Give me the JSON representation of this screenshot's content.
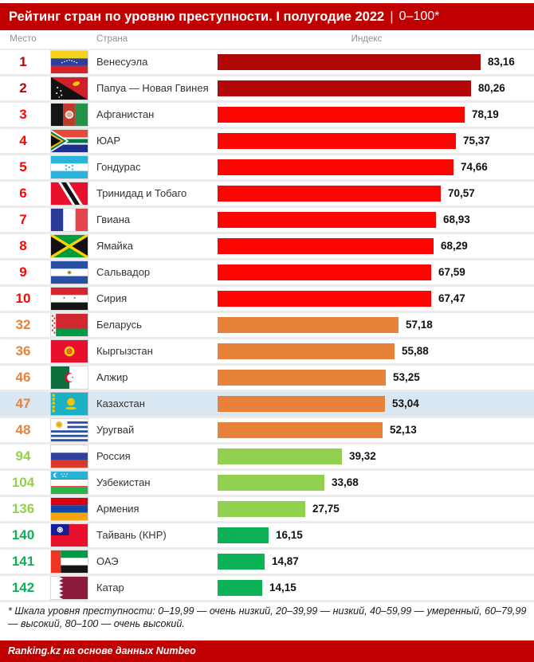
{
  "title": {
    "main": "Рейтинг стран по уровню преступности. I полугодие 2022",
    "separator": "|",
    "scale": "0–100*"
  },
  "columns": {
    "rank": "Место",
    "country": "Страна",
    "index": "Индекс"
  },
  "chart_data": {
    "type": "bar",
    "orientation": "horizontal",
    "xlim": [
      0,
      100
    ],
    "title": "Рейтинг стран по уровню преступности. I полугодие 2022 | 0–100*",
    "value_column": "Индекс",
    "tier_colors": {
      "very_high": "#b20707",
      "high": "#fb0603",
      "moderate": "#e8823a",
      "low": "#92d050",
      "very_low": "#0db156"
    },
    "rows": [
      {
        "rank": "1",
        "country": "Венесуэла",
        "value": 83.16,
        "label": "83,16",
        "tier": "very_high",
        "flag": "ve",
        "highlight": false
      },
      {
        "rank": "2",
        "country": "Папуа — Новая Гвинея",
        "value": 80.26,
        "label": "80,26",
        "tier": "very_high",
        "flag": "pg",
        "highlight": false
      },
      {
        "rank": "3",
        "country": "Афганистан",
        "value": 78.19,
        "label": "78,19",
        "tier": "high",
        "flag": "af",
        "highlight": false
      },
      {
        "rank": "4",
        "country": "ЮАР",
        "value": 75.37,
        "label": "75,37",
        "tier": "high",
        "flag": "za",
        "highlight": false
      },
      {
        "rank": "5",
        "country": "Гондурас",
        "value": 74.66,
        "label": "74,66",
        "tier": "high",
        "flag": "hn",
        "highlight": false
      },
      {
        "rank": "6",
        "country": "Тринидад и Тобаго",
        "value": 70.57,
        "label": "70,57",
        "tier": "high",
        "flag": "tt",
        "highlight": false
      },
      {
        "rank": "7",
        "country": "Гвиана",
        "value": 68.93,
        "label": "68,93",
        "tier": "high",
        "flag": "gf",
        "highlight": false
      },
      {
        "rank": "8",
        "country": "Ямайка",
        "value": 68.29,
        "label": "68,29",
        "tier": "high",
        "flag": "jm",
        "highlight": false
      },
      {
        "rank": "9",
        "country": "Сальвадор",
        "value": 67.59,
        "label": "67,59",
        "tier": "high",
        "flag": "sv",
        "highlight": false
      },
      {
        "rank": "10",
        "country": "Сирия",
        "value": 67.47,
        "label": "67,47",
        "tier": "high",
        "flag": "sy",
        "highlight": false
      },
      {
        "rank": "32",
        "country": "Беларусь",
        "value": 57.18,
        "label": "57,18",
        "tier": "moderate",
        "flag": "by",
        "highlight": false
      },
      {
        "rank": "36",
        "country": "Кыргызстан",
        "value": 55.88,
        "label": "55,88",
        "tier": "moderate",
        "flag": "kg",
        "highlight": false
      },
      {
        "rank": "46",
        "country": "Алжир",
        "value": 53.25,
        "label": "53,25",
        "tier": "moderate",
        "flag": "dz",
        "highlight": false
      },
      {
        "rank": "47",
        "country": "Казахстан",
        "value": 53.04,
        "label": "53,04",
        "tier": "moderate",
        "flag": "kz",
        "highlight": true
      },
      {
        "rank": "48",
        "country": "Уругвай",
        "value": 52.13,
        "label": "52,13",
        "tier": "moderate",
        "flag": "uy",
        "highlight": false
      },
      {
        "rank": "94",
        "country": "Россия",
        "value": 39.32,
        "label": "39,32",
        "tier": "low",
        "flag": "ru",
        "highlight": false
      },
      {
        "rank": "104",
        "country": "Узбекистан",
        "value": 33.68,
        "label": "33,68",
        "tier": "low",
        "flag": "uz",
        "highlight": false
      },
      {
        "rank": "136",
        "country": "Армения",
        "value": 27.75,
        "label": "27,75",
        "tier": "low",
        "flag": "am",
        "highlight": false
      },
      {
        "rank": "140",
        "country": "Тайвань (КНР)",
        "value": 16.15,
        "label": "16,15",
        "tier": "very_low",
        "flag": "tw",
        "highlight": false
      },
      {
        "rank": "141",
        "country": "ОАЭ",
        "value": 14.87,
        "label": "14,87",
        "tier": "very_low",
        "flag": "ae",
        "highlight": false
      },
      {
        "rank": "142",
        "country": "Катар",
        "value": 14.15,
        "label": "14,15",
        "tier": "very_low",
        "flag": "qa",
        "highlight": false
      }
    ]
  },
  "colors": {
    "header_bg": "#c00000",
    "footer_bg": "#c00000",
    "highlight_row_bg": "#d9e7f3",
    "row_divider": "#ebebeb",
    "column_header_text": "#8f8f8f"
  },
  "footnote": "* Шкала уровня преступности: 0–19,99 — очень низкий, 20–39,99 — низкий, 40–59,99 — умеренный, 60–79,99 — высокий, 80–100 — очень высокий.",
  "footer": "Ranking.kz на основе данных Numbeo"
}
